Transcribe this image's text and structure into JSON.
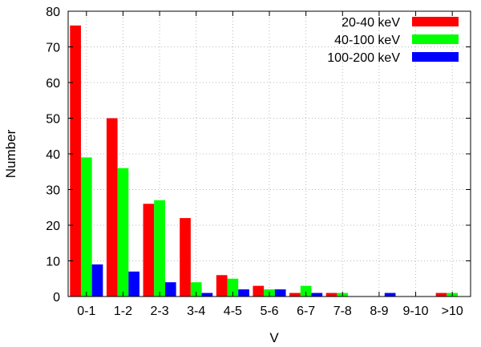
{
  "chart_data": {
    "type": "bar",
    "xlabel": "V",
    "ylabel": "Number",
    "categories": [
      "0-1",
      "1-2",
      "2-3",
      "3-4",
      "4-5",
      "5-6",
      "6-7",
      "7-8",
      "8-9",
      "9-10",
      ">10"
    ],
    "series": [
      {
        "name": "20-40 keV",
        "color": "#ff0000",
        "values": [
          76,
          50,
          26,
          22,
          6,
          3,
          1,
          1,
          0,
          0,
          1
        ]
      },
      {
        "name": "40-100 keV",
        "color": "#00ff00",
        "values": [
          39,
          36,
          27,
          4,
          5,
          2,
          3,
          1,
          0,
          0,
          1
        ]
      },
      {
        "name": "100-200 keV",
        "color": "#0000ff",
        "values": [
          9,
          7,
          4,
          1,
          2,
          2,
          1,
          0,
          1,
          0,
          0
        ]
      }
    ],
    "ylim": [
      0,
      80
    ],
    "yticks": [
      0,
      10,
      20,
      30,
      40,
      50,
      60,
      70,
      80
    ],
    "grid": true,
    "legend_position": "top-right"
  }
}
